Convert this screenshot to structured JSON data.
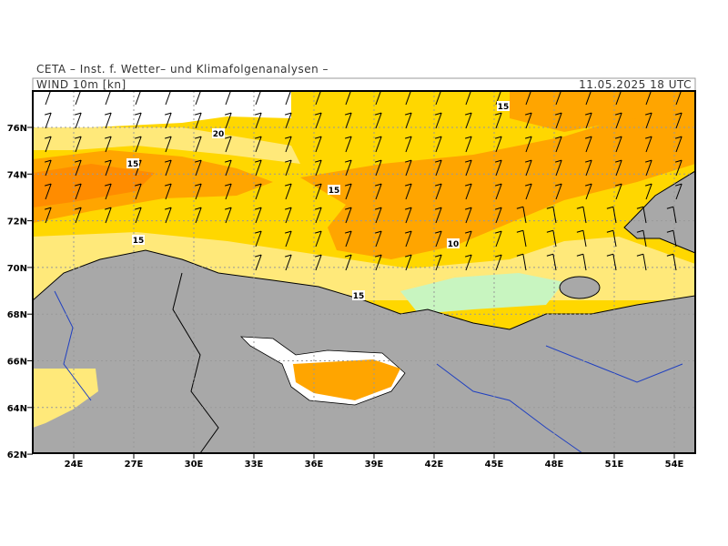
{
  "header": {
    "title": "CETA – Inst. f. Wetter– und Klimafolgenanalysen –",
    "variable": "WIND 10m [kn]",
    "time": "11.05.2025 18 UTC"
  },
  "axes": {
    "lat_labels": [
      "76N",
      "74N",
      "72N",
      "70N",
      "68N",
      "66N",
      "64N",
      "62N"
    ],
    "lon_labels": [
      "24E",
      "27E",
      "30E",
      "33E",
      "36E",
      "39E",
      "42E",
      "45E",
      "48E",
      "51E",
      "54E"
    ]
  },
  "contour_labels": [
    "15",
    "20",
    "15",
    "15",
    "15",
    "10",
    "15"
  ]
}
